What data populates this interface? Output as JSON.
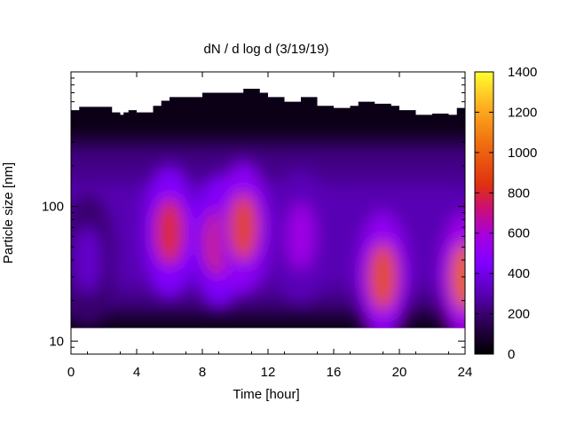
{
  "chart_data": {
    "type": "heatmap",
    "title": "dN / d log d (3/19/19)",
    "xlabel": "Time [hour]",
    "ylabel": "Particle size [nm]",
    "x_range": [
      0,
      24
    ],
    "x_ticks": [
      0,
      4,
      8,
      12,
      16,
      20,
      24
    ],
    "y_scale": "log",
    "y_range": [
      8,
      1000
    ],
    "y_ticks": [
      10,
      100
    ],
    "colorbar": {
      "range": [
        0,
        1400
      ],
      "ticks": [
        0,
        200,
        400,
        600,
        800,
        1000,
        1200,
        1400
      ],
      "palette": [
        "#000000",
        "#3c0078",
        "#7f00ff",
        "#b000d0",
        "#e03010",
        "#ff9010",
        "#ffff30"
      ]
    },
    "measured_size_range_nm": {
      "lower_approx": 12.5,
      "upper_varies": [
        [
          0,
          520
        ],
        [
          0.5,
          550
        ],
        [
          2,
          550
        ],
        [
          2.5,
          500
        ],
        [
          3,
          480
        ],
        [
          3.2,
          500
        ],
        [
          3.5,
          520
        ],
        [
          4,
          500
        ],
        [
          5,
          500
        ],
        [
          5,
          560
        ],
        [
          5.5,
          610
        ],
        [
          6,
          650
        ],
        [
          7,
          650
        ],
        [
          8,
          700
        ],
        [
          10,
          700
        ],
        [
          10.5,
          750
        ],
        [
          11.5,
          700
        ],
        [
          12,
          650
        ],
        [
          13,
          600
        ],
        [
          14,
          650
        ],
        [
          15,
          560
        ],
        [
          16,
          540
        ],
        [
          17,
          560
        ],
        [
          17.5,
          600
        ],
        [
          18.5,
          580
        ],
        [
          19.5,
          560
        ],
        [
          20,
          520
        ],
        [
          21,
          480
        ],
        [
          22,
          490
        ],
        [
          23,
          480
        ],
        [
          23.5,
          540
        ],
        [
          24,
          600
        ]
      ]
    },
    "concentration_features": [
      {
        "time_h": 1.0,
        "diameter_nm": 40,
        "value": 350
      },
      {
        "time_h": 6.0,
        "diameter_nm": 65,
        "value": 820
      },
      {
        "time_h": 9.0,
        "diameter_nm": 55,
        "value": 800
      },
      {
        "time_h": 10.5,
        "diameter_nm": 70,
        "value": 900
      },
      {
        "time_h": 14.0,
        "diameter_nm": 60,
        "value": 560
      },
      {
        "time_h": 19.0,
        "diameter_nm": 30,
        "value": 930
      },
      {
        "time_h": 24.0,
        "diameter_nm": 30,
        "value": 1000
      }
    ],
    "grid": false,
    "legend": "colorbar-right"
  }
}
